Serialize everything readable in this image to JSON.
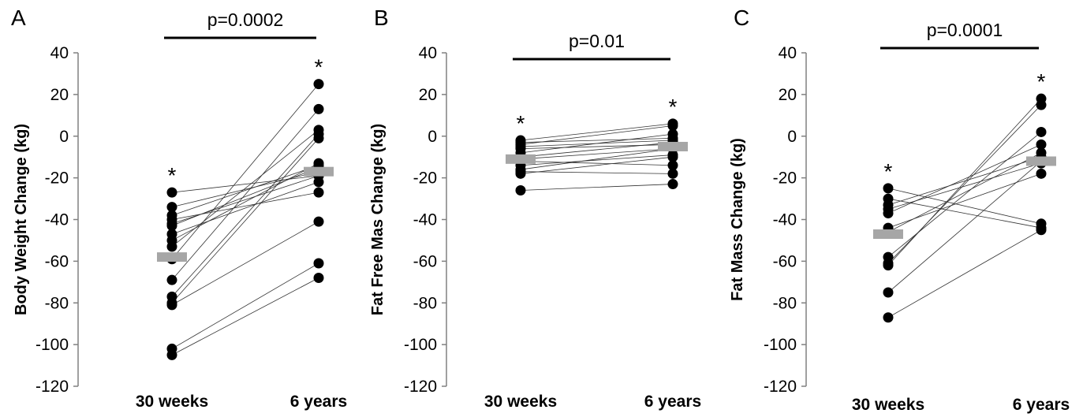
{
  "chart_data": [
    {
      "type": "scatter",
      "panel": "A",
      "ylabel": "Body Weight Change (kg)",
      "ylim": [
        -120,
        40
      ],
      "yticks": [
        40,
        20,
        0,
        -20,
        -40,
        -60,
        -80,
        -100,
        -120
      ],
      "categories": [
        "30 weeks",
        "6 years"
      ],
      "significance": "p=0.0002",
      "star_label": "*",
      "mean_color": "#a6a6a6",
      "means": [
        -58,
        -17
      ],
      "pairs": [
        [
          -27,
          -19
        ],
        [
          -34,
          -17
        ],
        [
          -38,
          -14
        ],
        [
          -40,
          -27
        ],
        [
          -42,
          -19
        ],
        [
          -43,
          -15
        ],
        [
          -47,
          -22
        ],
        [
          -50,
          -13
        ],
        [
          -53,
          3
        ],
        [
          -59,
          25
        ],
        [
          -69,
          13
        ],
        [
          -77,
          1
        ],
        [
          -80,
          -1
        ],
        [
          -81,
          -41
        ],
        [
          -102,
          -61
        ],
        [
          -105,
          -68
        ]
      ]
    },
    {
      "type": "scatter",
      "panel": "B",
      "ylabel": "Fat Free Mas  Change (kg)",
      "ylim": [
        -120,
        40
      ],
      "yticks": [
        40,
        20,
        0,
        -20,
        -40,
        -60,
        -80,
        -100,
        -120
      ],
      "categories": [
        "30 weeks",
        "6 years"
      ],
      "significance": "p=0.01",
      "star_label": "*",
      "mean_color": "#a6a6a6",
      "means": [
        -11,
        -5
      ],
      "pairs": [
        [
          -2,
          6
        ],
        [
          -3,
          -1
        ],
        [
          -4,
          5
        ],
        [
          -5,
          -2
        ],
        [
          -6,
          -4
        ],
        [
          -8,
          1
        ],
        [
          -10,
          -3
        ],
        [
          -11,
          -6
        ],
        [
          -12,
          -14
        ],
        [
          -14,
          -9
        ],
        [
          -16,
          -6
        ],
        [
          -17,
          -18
        ],
        [
          -18,
          -10
        ],
        [
          -26,
          -23
        ]
      ]
    },
    {
      "type": "scatter",
      "panel": "C",
      "ylabel": "Fat Mass Change (kg)",
      "ylim": [
        -120,
        40
      ],
      "yticks": [
        40,
        20,
        0,
        -20,
        -40,
        -60,
        -80,
        -100,
        -120
      ],
      "categories": [
        "30 weeks",
        "6 years"
      ],
      "significance": "p=0.0001",
      "star_label": "*",
      "mean_color": "#a6a6a6",
      "means": [
        -47,
        -12
      ],
      "pairs": [
        [
          -25,
          -42
        ],
        [
          -30,
          -44
        ],
        [
          -33,
          -10
        ],
        [
          -35,
          -13
        ],
        [
          -37,
          -4
        ],
        [
          -44,
          -18
        ],
        [
          -46,
          -8
        ],
        [
          -58,
          2
        ],
        [
          -61,
          15
        ],
        [
          -62,
          18
        ],
        [
          -75,
          -12
        ],
        [
          -87,
          -45
        ]
      ]
    }
  ]
}
